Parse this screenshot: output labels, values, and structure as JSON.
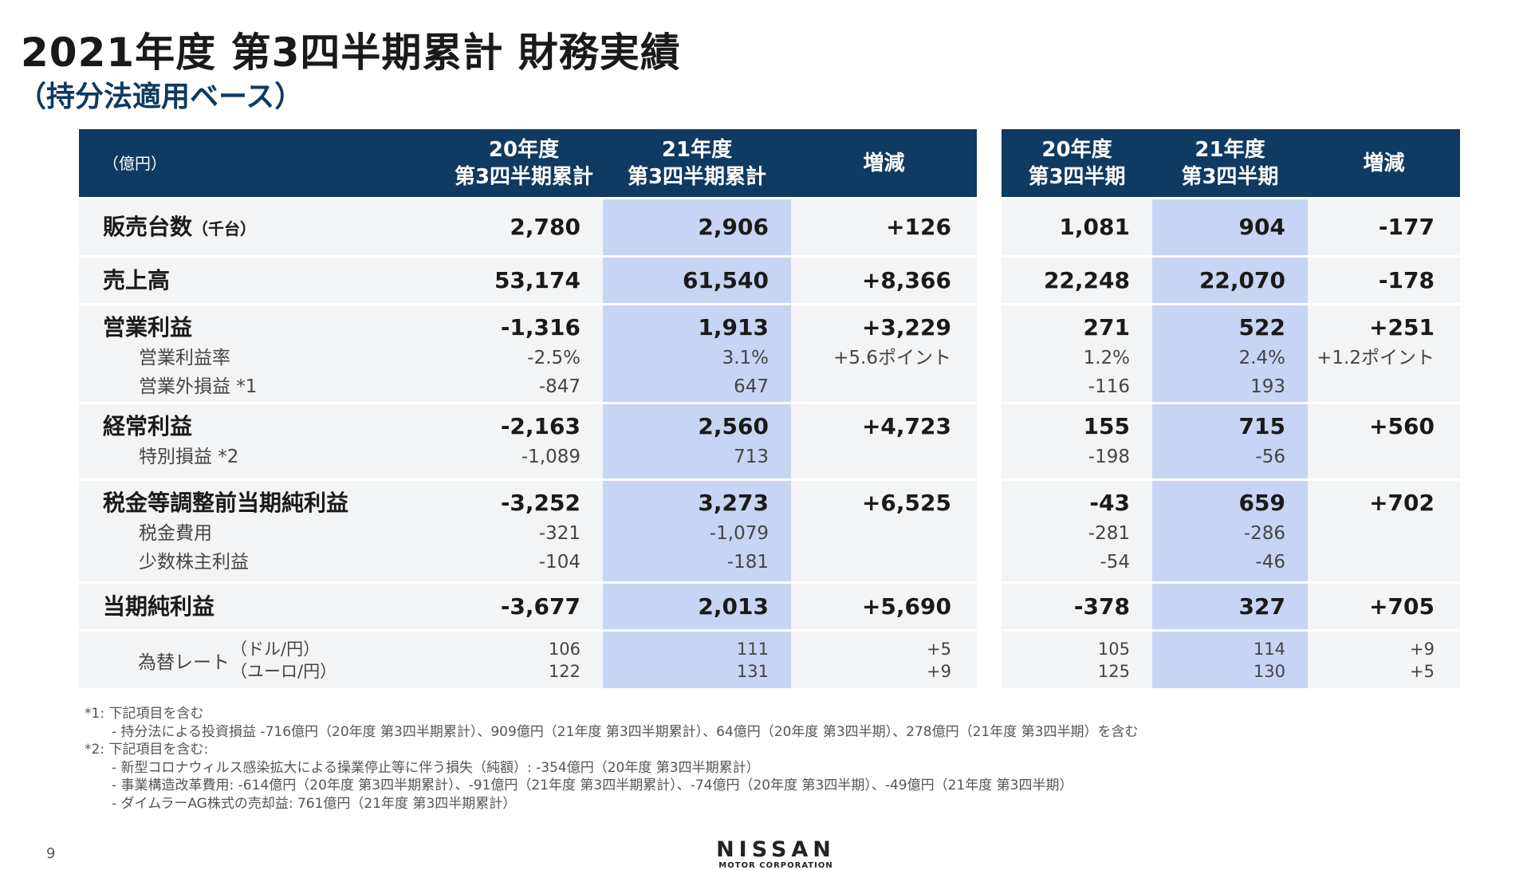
{
  "title": "2021年度 第3四半期累計 財務実績",
  "subtitle": "（持分法適用ベース）",
  "header": {
    "unit": "（億円）",
    "left_cols": [
      "20年度\n第3四半期累計",
      "21年度\n第3四半期累計",
      "増減"
    ],
    "right_cols": [
      "20年度\n第3四半期",
      "21年度\n第3四半期",
      "増減"
    ]
  },
  "colors": {
    "header": "#0f3a61",
    "highlight": "#c5d5f3",
    "row_bg": "#f3f4f5"
  },
  "rows": [
    {
      "lines": [
        {
          "type": "main",
          "label": "販売台数",
          "unit": "（千台）",
          "values": [
            "2,780",
            "2,906",
            "+126",
            "1,081",
            "904",
            "-177"
          ]
        }
      ]
    },
    {
      "lines": [
        {
          "type": "main",
          "label": "売上高",
          "values": [
            "53,174",
            "61,540",
            "+8,366",
            "22,248",
            "22,070",
            "-178"
          ]
        }
      ]
    },
    {
      "lines": [
        {
          "type": "main",
          "label": "営業利益",
          "values": [
            "-1,316",
            "1,913",
            "+3,229",
            "271",
            "522",
            "+251"
          ]
        },
        {
          "type": "sub",
          "label": "営業利益率",
          "values": [
            "-2.5%",
            "3.1%",
            "+5.6ポイント",
            "1.2%",
            "2.4%",
            "+1.2ポイント"
          ]
        },
        {
          "type": "sub",
          "label": "営業外損益 *1",
          "values": [
            "-847",
            "647",
            "",
            "-116",
            "193",
            ""
          ]
        }
      ]
    },
    {
      "lines": [
        {
          "type": "main",
          "label": "経常利益",
          "values": [
            "-2,163",
            "2,560",
            "+4,723",
            "155",
            "715",
            "+560"
          ]
        },
        {
          "type": "sub",
          "label": "特別損益 *2",
          "values": [
            "-1,089",
            "713",
            "",
            "-198",
            "-56",
            ""
          ]
        }
      ]
    },
    {
      "lines": [
        {
          "type": "main",
          "label": "税金等調整前当期純利益",
          "values": [
            "-3,252",
            "3,273",
            "+6,525",
            "-43",
            "659",
            "+702"
          ]
        },
        {
          "type": "sub",
          "label": "税金費用",
          "values": [
            "-321",
            "-1,079",
            "",
            "-281",
            "-286",
            ""
          ]
        },
        {
          "type": "sub",
          "label": "少数株主利益",
          "values": [
            "-104",
            "-181",
            "",
            "-54",
            "-46",
            ""
          ]
        }
      ]
    },
    {
      "lines": [
        {
          "type": "main",
          "label": "当期純利益",
          "values": [
            "-3,677",
            "2,013",
            "+5,690",
            "-378",
            "327",
            "+705"
          ]
        }
      ]
    },
    {
      "fx": true,
      "label": "為替レート",
      "lines": [
        {
          "type": "fx",
          "label": "（ドル/円）",
          "values": [
            "106",
            "111",
            "+5",
            "105",
            "114",
            "+9"
          ]
        },
        {
          "type": "fx",
          "label": "（ユーロ/円）",
          "values": [
            "122",
            "131",
            "+9",
            "125",
            "130",
            "+5"
          ]
        }
      ]
    }
  ],
  "notes": [
    {
      "indent": false,
      "text": "*1: 下記項目を含む"
    },
    {
      "indent": true,
      "text": "- 持分法による投資損益 -716億円（20年度 第3四半期累計）、909億円（21年度 第3四半期累計）、64億円（20年度 第3四半期）、278億円（21年度 第3四半期）を含む"
    },
    {
      "indent": false,
      "text": "*2: 下記項目を含む:"
    },
    {
      "indent": true,
      "text": "- 新型コロナウィルス感染拡大による操業停止等に伴う損失（純額）: -354億円（20年度 第3四半期累計）"
    },
    {
      "indent": true,
      "text": "- 事業構造改革費用: -614億円（20年度 第3四半期累計）、-91億円（21年度 第3四半期累計）、-74億円（20年度 第3四半期）、-49億円（21年度 第3四半期）"
    },
    {
      "indent": true,
      "text": "- ダイムラーAG株式の売却益: 761億円（21年度 第3四半期累計）"
    }
  ],
  "page_number": "9",
  "logo": {
    "brand": "NISSAN",
    "sub": "MOTOR CORPORATION"
  }
}
